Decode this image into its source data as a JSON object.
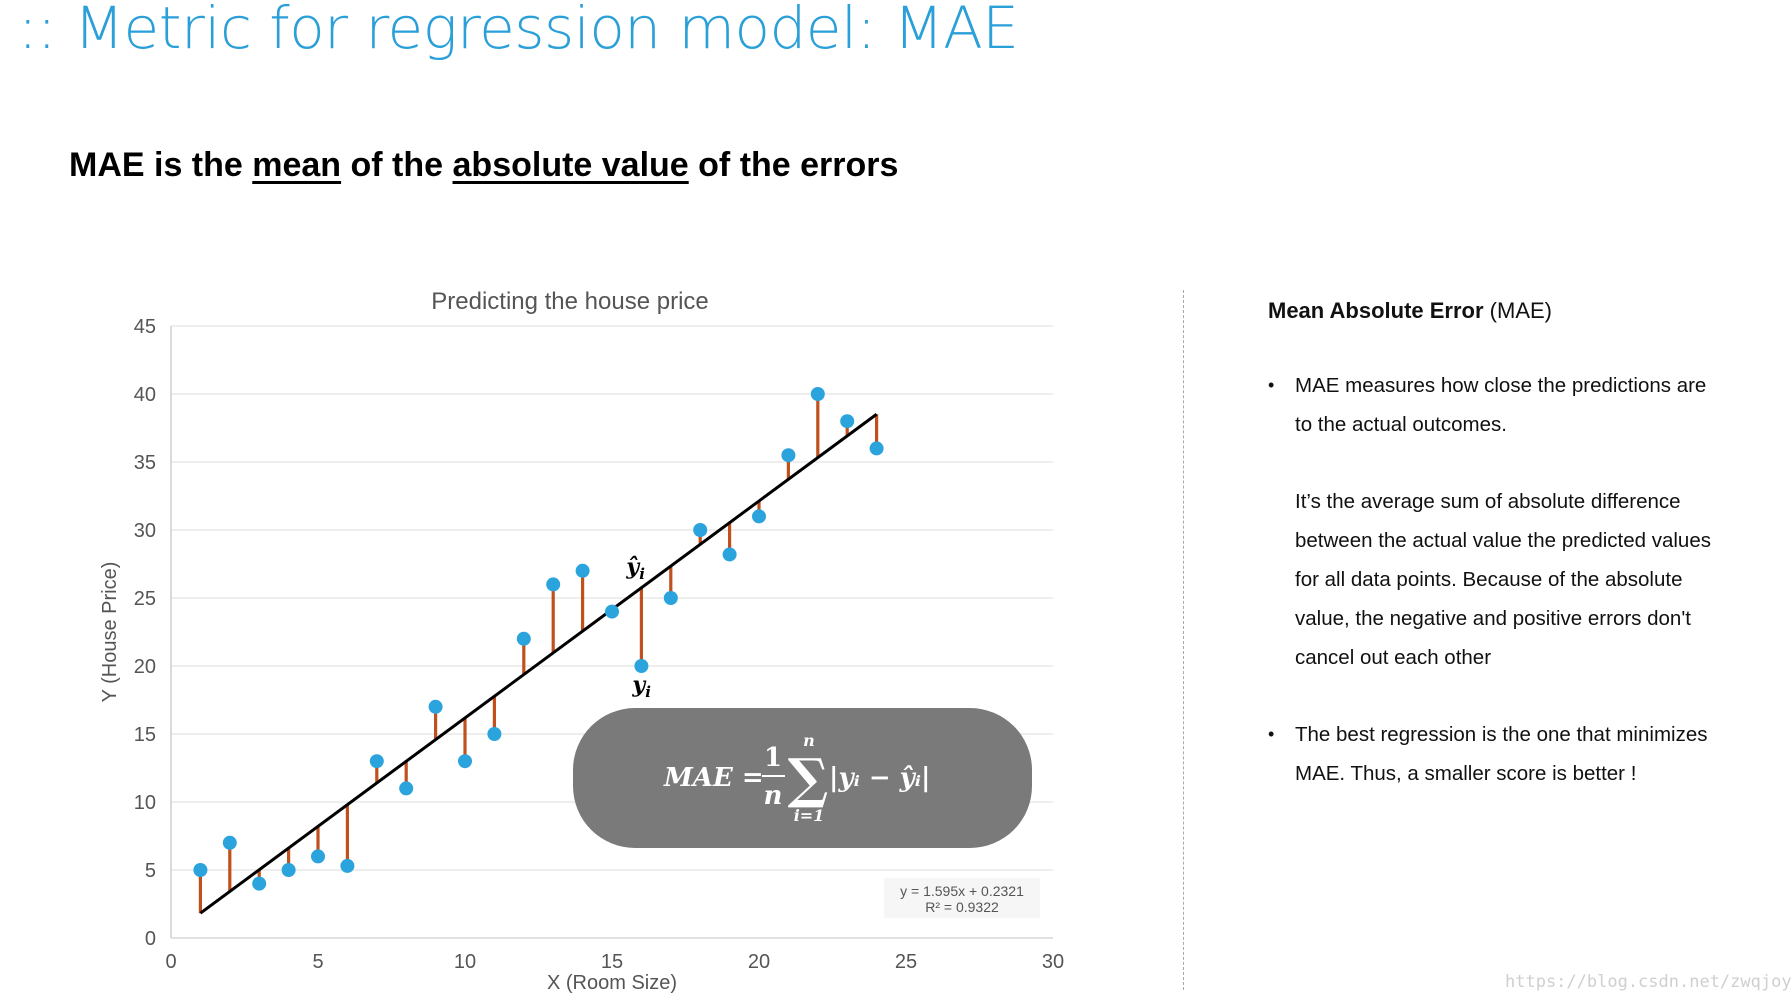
{
  "slide": {
    "title": ":: Metric for regression model: MAE",
    "subtitle": {
      "part1": "MAE is the ",
      "emph1": "mean",
      "part2": " of the ",
      "emph2": "absolute value",
      "part3": " of the errors"
    }
  },
  "chart_data": {
    "type": "scatter",
    "title": "Predicting the house price",
    "xlabel": "X (Room Size)",
    "ylabel": "Y (House Price)",
    "xlim": [
      0,
      30
    ],
    "ylim": [
      0,
      45
    ],
    "x_ticks": [
      "0",
      "5",
      "10",
      "15",
      "20",
      "25",
      "30"
    ],
    "y_ticks": [
      "0",
      "5",
      "10",
      "15",
      "20",
      "25",
      "30",
      "35",
      "40",
      "45"
    ],
    "grid": "horizontal",
    "points": [
      {
        "x": 1,
        "y": 5
      },
      {
        "x": 2,
        "y": 7
      },
      {
        "x": 3,
        "y": 4
      },
      {
        "x": 4,
        "y": 5
      },
      {
        "x": 5,
        "y": 6
      },
      {
        "x": 6,
        "y": 5.3
      },
      {
        "x": 7,
        "y": 13
      },
      {
        "x": 8,
        "y": 11
      },
      {
        "x": 9,
        "y": 17
      },
      {
        "x": 10,
        "y": 13
      },
      {
        "x": 11,
        "y": 15
      },
      {
        "x": 12,
        "y": 22
      },
      {
        "x": 13,
        "y": 26
      },
      {
        "x": 14,
        "y": 27
      },
      {
        "x": 15,
        "y": 24
      },
      {
        "x": 16,
        "y": 20
      },
      {
        "x": 17,
        "y": 25
      },
      {
        "x": 18,
        "y": 30
      },
      {
        "x": 19,
        "y": 28.2
      },
      {
        "x": 20,
        "y": 31
      },
      {
        "x": 21,
        "y": 35.5
      },
      {
        "x": 22,
        "y": 40
      },
      {
        "x": 23,
        "y": 38
      },
      {
        "x": 24,
        "y": 36
      }
    ],
    "trendline": {
      "slope": 1.595,
      "intercept": 0.2321,
      "x_start": 1,
      "x_end": 24
    },
    "trend_equation": "y = 1.595x + 0.2321",
    "trend_r2": "R² = 0.9322",
    "annotation_point_x": 16,
    "annotation_yhat": "ŷ",
    "annotation_y": "y",
    "annotation_subscript": "i",
    "formula": {
      "lhs": "MAE =",
      "numerator": "1",
      "denominator": "n",
      "sigma": "∑",
      "sum_top": "n",
      "sum_bottom": "i=1",
      "body": "|yᵢ − ŷᵢ|"
    },
    "colors": {
      "point": "#2ba3dd",
      "residual": "#c0501e",
      "trendline": "#000000",
      "grid": "#e4e4e4",
      "formula_box": "#7a7a7a"
    }
  },
  "panel": {
    "heading_bold": "Mean Absolute Error",
    "heading_rest": " (MAE)",
    "bullet_char": "•",
    "bullet1_lines": [
      "MAE measures how close the predictions are",
      "to the actual outcomes."
    ],
    "bullet1_para2_lines": [
      "It’s the average sum of absolute difference",
      "between the actual value the predicted values",
      "for all data points. Because of the absolute",
      "value, the negative and positive errors don't",
      "cancel out each other"
    ],
    "bullet2_lines": [
      "The best regression is the one that minimizes",
      "MAE. Thus,  a smaller score is better !"
    ]
  },
  "watermark": "https://blog.csdn.net/zwqjoy"
}
